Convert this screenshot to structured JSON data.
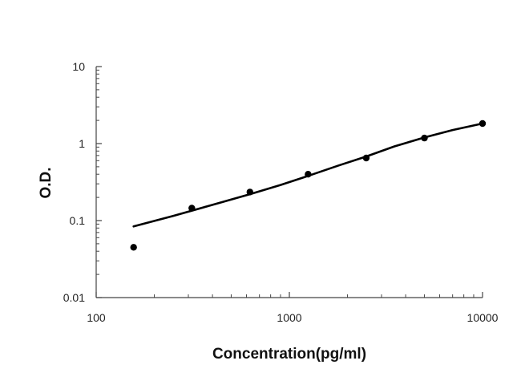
{
  "chart_data": {
    "type": "scatter",
    "title": "",
    "xlabel": "Concentration(pg/ml)",
    "ylabel": "O.D.",
    "x_scale": "log",
    "y_scale": "log",
    "xlim": [
      100,
      10000
    ],
    "ylim": [
      0.01,
      10
    ],
    "x_ticks": [
      "100",
      "1000",
      "10000"
    ],
    "y_ticks": [
      "10",
      "1",
      "0.1",
      "0.01"
    ],
    "grid": false,
    "legend": "none",
    "series": [
      {
        "type": "scatter",
        "x": [
          156.25,
          312.5,
          625,
          1250,
          2500,
          5000,
          10000
        ],
        "y": [
          0.045,
          0.145,
          0.235,
          0.4,
          0.65,
          1.18,
          1.82
        ],
        "color": "#000000"
      },
      {
        "type": "line",
        "x": [
          156.25,
          250,
          400,
          625,
          900,
          1250,
          1800,
          2500,
          3500,
          5000,
          7000,
          10000
        ],
        "y": [
          0.084,
          0.115,
          0.16,
          0.22,
          0.29,
          0.38,
          0.52,
          0.68,
          0.92,
          1.2,
          1.5,
          1.82
        ],
        "color": "#000000"
      }
    ]
  }
}
